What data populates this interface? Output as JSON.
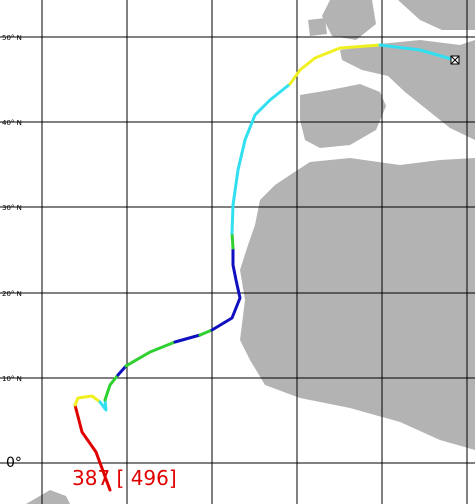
{
  "map": {
    "latitude_labels": [
      "50° N",
      "40° N",
      "30° N",
      "20° N",
      "10° N",
      "0°"
    ],
    "track_label": "387 [ 496]"
  }
}
